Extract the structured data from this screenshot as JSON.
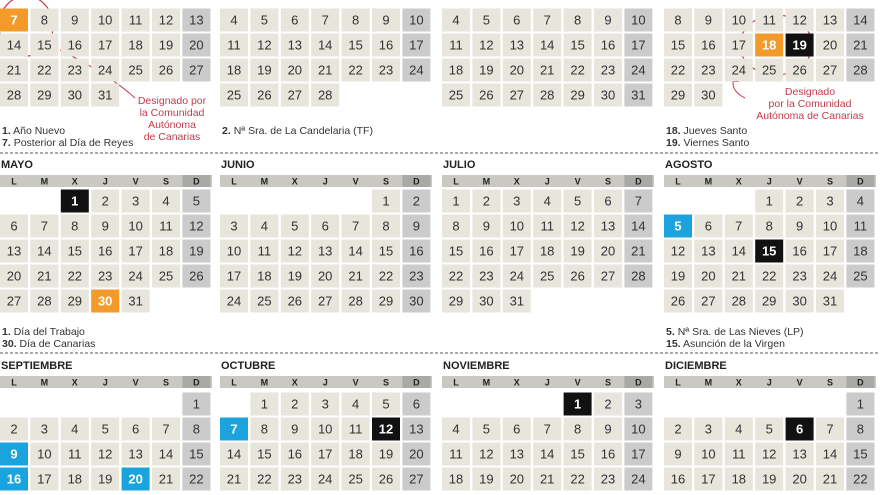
{
  "weekdays": [
    "L",
    "M",
    "X",
    "J",
    "V",
    "S",
    "D"
  ],
  "months": [
    {
      "weeks": [
        [
          {
            "day": 7,
            "color": "#f39a2b"
          },
          8,
          9,
          10,
          11,
          12,
          13
        ],
        [
          14,
          15,
          16,
          17,
          18,
          19,
          20
        ],
        [
          21,
          22,
          23,
          24,
          25,
          26,
          27
        ],
        [
          28,
          29,
          30,
          31,
          null,
          null,
          null
        ]
      ],
      "notes": [
        {
          "num": "1.",
          "text": "Año Nuevo"
        },
        {
          "num": "7.",
          "text": "Posterior al Día de Reyes"
        }
      ],
      "annotation": [
        "Designado por",
        "la Comunidad",
        "Autónoma",
        "de Canarias"
      ]
    },
    {
      "weeks": [
        [
          4,
          5,
          6,
          7,
          8,
          9,
          10
        ],
        [
          11,
          12,
          13,
          14,
          15,
          16,
          17
        ],
        [
          18,
          19,
          20,
          21,
          22,
          23,
          24
        ],
        [
          25,
          26,
          27,
          28,
          null,
          null,
          null
        ]
      ],
      "notes": [
        {
          "num": "2.",
          "text": "Nª Sra. de La Candelaria (TF)"
        }
      ]
    },
    {
      "weeks": [
        [
          4,
          5,
          6,
          7,
          8,
          9,
          10
        ],
        [
          11,
          12,
          13,
          14,
          15,
          16,
          17
        ],
        [
          18,
          19,
          20,
          21,
          22,
          23,
          24
        ],
        [
          25,
          26,
          27,
          28,
          29,
          30,
          31
        ]
      ]
    },
    {
      "weeks": [
        [
          8,
          9,
          10,
          11,
          12,
          13,
          14
        ],
        [
          15,
          16,
          17,
          {
            "day": 18,
            "color": "#f39a2b"
          },
          {
            "day": 19,
            "color": "#111111"
          },
          20,
          21
        ],
        [
          22,
          23,
          24,
          25,
          26,
          27,
          28
        ],
        [
          29,
          30,
          null,
          null,
          null,
          null,
          null
        ]
      ],
      "notes": [
        {
          "num": "18.",
          "text": "Jueves Santo"
        },
        {
          "num": "19.",
          "text": "Viernes Santo"
        }
      ],
      "annotation": [
        "Designado",
        "por la Comunidad",
        "Autónoma de Canarias"
      ]
    },
    {
      "name": "MAYO",
      "weeks": [
        [
          null,
          null,
          {
            "day": 1,
            "color": "#111111"
          },
          2,
          3,
          4,
          5
        ],
        [
          6,
          7,
          8,
          9,
          10,
          11,
          12
        ],
        [
          13,
          14,
          15,
          16,
          17,
          18,
          19
        ],
        [
          20,
          21,
          22,
          23,
          24,
          25,
          26
        ],
        [
          27,
          28,
          29,
          {
            "day": 30,
            "color": "#f39a2b"
          },
          31,
          null,
          null
        ]
      ],
      "notes": [
        {
          "num": "1.",
          "text": "Día del Trabajo"
        },
        {
          "num": "30.",
          "text": "Día de Canarias"
        }
      ]
    },
    {
      "name": "JUNIO",
      "weeks": [
        [
          null,
          null,
          null,
          null,
          null,
          1,
          2
        ],
        [
          3,
          4,
          5,
          6,
          7,
          8,
          9
        ],
        [
          10,
          11,
          12,
          13,
          14,
          15,
          16
        ],
        [
          17,
          18,
          19,
          20,
          21,
          22,
          23
        ],
        [
          24,
          25,
          26,
          27,
          28,
          29,
          30
        ]
      ]
    },
    {
      "name": "JULIO",
      "weeks": [
        [
          1,
          2,
          3,
          4,
          5,
          6,
          7
        ],
        [
          8,
          9,
          10,
          11,
          12,
          13,
          14
        ],
        [
          15,
          16,
          17,
          18,
          19,
          20,
          21
        ],
        [
          22,
          23,
          24,
          25,
          26,
          27,
          28
        ],
        [
          29,
          30,
          31,
          null,
          null,
          null,
          null
        ]
      ]
    },
    {
      "name": "AGOSTO",
      "weeks": [
        [
          null,
          null,
          null,
          1,
          2,
          3,
          4
        ],
        [
          {
            "day": 5,
            "color": "#1ba3dd"
          },
          6,
          7,
          8,
          9,
          10,
          11
        ],
        [
          12,
          13,
          14,
          {
            "day": 15,
            "color": "#111111"
          },
          16,
          17,
          18
        ],
        [
          19,
          20,
          21,
          22,
          23,
          24,
          25
        ],
        [
          26,
          27,
          28,
          29,
          30,
          31,
          null
        ]
      ],
      "notes": [
        {
          "num": "5.",
          "text": "Nª Sra. de Las Nieves (LP)"
        },
        {
          "num": "15.",
          "text": "Asunción de la Virgen"
        }
      ]
    },
    {
      "name": "SEPTIEMBRE",
      "weeks": [
        [
          null,
          null,
          null,
          null,
          null,
          null,
          1
        ],
        [
          2,
          3,
          4,
          5,
          6,
          7,
          8
        ],
        [
          {
            "day": 9,
            "color": "#1ba3dd"
          },
          10,
          11,
          12,
          13,
          14,
          15
        ],
        [
          {
            "day": 16,
            "color": "#1ba3dd"
          },
          17,
          18,
          19,
          {
            "day": 20,
            "color": "#1ba3dd"
          },
          21,
          22
        ]
      ]
    },
    {
      "name": "OCTUBRE",
      "weeks": [
        [
          null,
          1,
          2,
          3,
          4,
          5,
          6
        ],
        [
          {
            "day": 7,
            "color": "#1ba3dd"
          },
          8,
          9,
          10,
          11,
          {
            "day": 12,
            "color": "#111111"
          },
          13
        ],
        [
          14,
          15,
          16,
          17,
          18,
          19,
          20
        ],
        [
          21,
          22,
          23,
          24,
          25,
          26,
          27
        ]
      ]
    },
    {
      "name": "NOVIEMBRE",
      "weeks": [
        [
          null,
          null,
          null,
          null,
          {
            "day": 1,
            "color": "#111111"
          },
          2,
          3
        ],
        [
          4,
          5,
          6,
          7,
          8,
          9,
          10
        ],
        [
          11,
          12,
          13,
          14,
          15,
          16,
          17
        ],
        [
          18,
          19,
          20,
          21,
          22,
          23,
          24
        ]
      ]
    },
    {
      "name": "DICIEMBRE",
      "weeks": [
        [
          null,
          null,
          null,
          null,
          null,
          null,
          1
        ],
        [
          2,
          3,
          4,
          5,
          {
            "day": 6,
            "color": "#111111"
          },
          7,
          8
        ],
        [
          9,
          10,
          11,
          12,
          13,
          14,
          15
        ],
        [
          16,
          17,
          18,
          19,
          20,
          21,
          22
        ]
      ]
    }
  ]
}
